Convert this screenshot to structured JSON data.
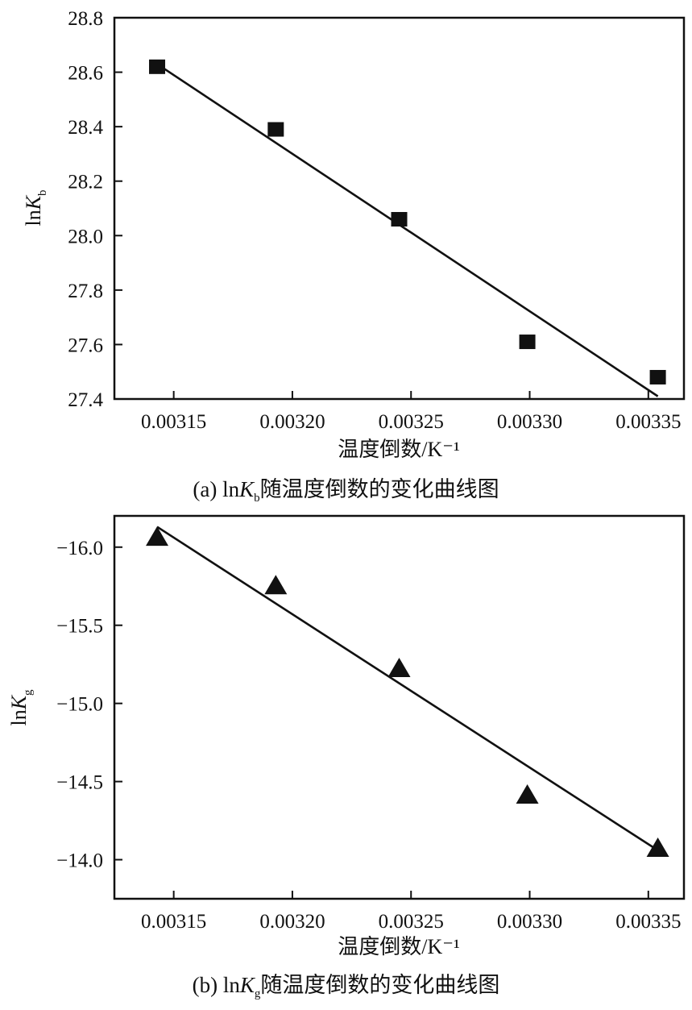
{
  "chart_data": [
    {
      "type": "scatter",
      "panel": "a",
      "xlabel": "温度倒数/K⁻¹",
      "ylabel": "lnK_b",
      "ylabel_parts": {
        "prefix": "ln",
        "var": "K",
        "sub": "b"
      },
      "xlim": [
        0.003125,
        0.003365
      ],
      "ylim": [
        27.4,
        28.8
      ],
      "x_ticks": [
        0.00315,
        0.0032,
        0.00325,
        0.0033,
        0.00335
      ],
      "x_tick_labels": [
        "0.00315",
        "0.00320",
        "0.00325",
        "0.00330",
        "0.00335"
      ],
      "y_ticks": [
        27.4,
        27.6,
        27.8,
        28.0,
        28.2,
        28.4,
        28.6,
        28.8
      ],
      "y_tick_labels": [
        "27.4",
        "27.6",
        "27.8",
        "28.0",
        "28.2",
        "28.4",
        "28.6",
        "28.8"
      ],
      "marker": "square",
      "points": [
        {
          "x": 0.003143,
          "y": 28.62
        },
        {
          "x": 0.003193,
          "y": 28.39
        },
        {
          "x": 0.003245,
          "y": 28.06
        },
        {
          "x": 0.003299,
          "y": 27.61
        },
        {
          "x": 0.003354,
          "y": 27.48
        }
      ],
      "fit_line": [
        {
          "x": 0.003143,
          "y": 28.63
        },
        {
          "x": 0.003354,
          "y": 27.41
        }
      ],
      "caption": {
        "prefix": "(a) ln",
        "var": "K",
        "sub": "b",
        "suffix": "随温度倒数的变化曲线图"
      }
    },
    {
      "type": "scatter",
      "panel": "b",
      "xlabel": "温度倒数/K⁻¹",
      "ylabel": "lnK_g",
      "ylabel_parts": {
        "prefix": "ln",
        "var": "K",
        "sub": "g"
      },
      "xlim": [
        0.003125,
        0.003365
      ],
      "ylim_note": "inverted axis: values increase downward",
      "ylim": [
        -16.2,
        -13.75
      ],
      "y_inverted": true,
      "x_ticks": [
        0.00315,
        0.0032,
        0.00325,
        0.0033,
        0.00335
      ],
      "x_tick_labels": [
        "0.00315",
        "0.00320",
        "0.00325",
        "0.00330",
        "0.00335"
      ],
      "y_ticks": [
        -16.0,
        -15.5,
        -15.0,
        -14.5,
        -14.0
      ],
      "y_tick_labels": [
        "−16.0",
        "−15.5",
        "−15.0",
        "−14.5",
        "−14.0"
      ],
      "marker": "triangle",
      "points": [
        {
          "x": 0.003143,
          "y": -16.06
        },
        {
          "x": 0.003193,
          "y": -15.75
        },
        {
          "x": 0.003245,
          "y": -15.22
        },
        {
          "x": 0.003299,
          "y": -14.41
        },
        {
          "x": 0.003354,
          "y": -14.07
        }
      ],
      "fit_line": [
        {
          "x": 0.003143,
          "y": -16.13
        },
        {
          "x": 0.003354,
          "y": -14.06
        }
      ],
      "caption": {
        "prefix": "(b) ln",
        "var": "K",
        "sub": "g",
        "suffix": "随温度倒数的变化曲线图"
      }
    }
  ]
}
